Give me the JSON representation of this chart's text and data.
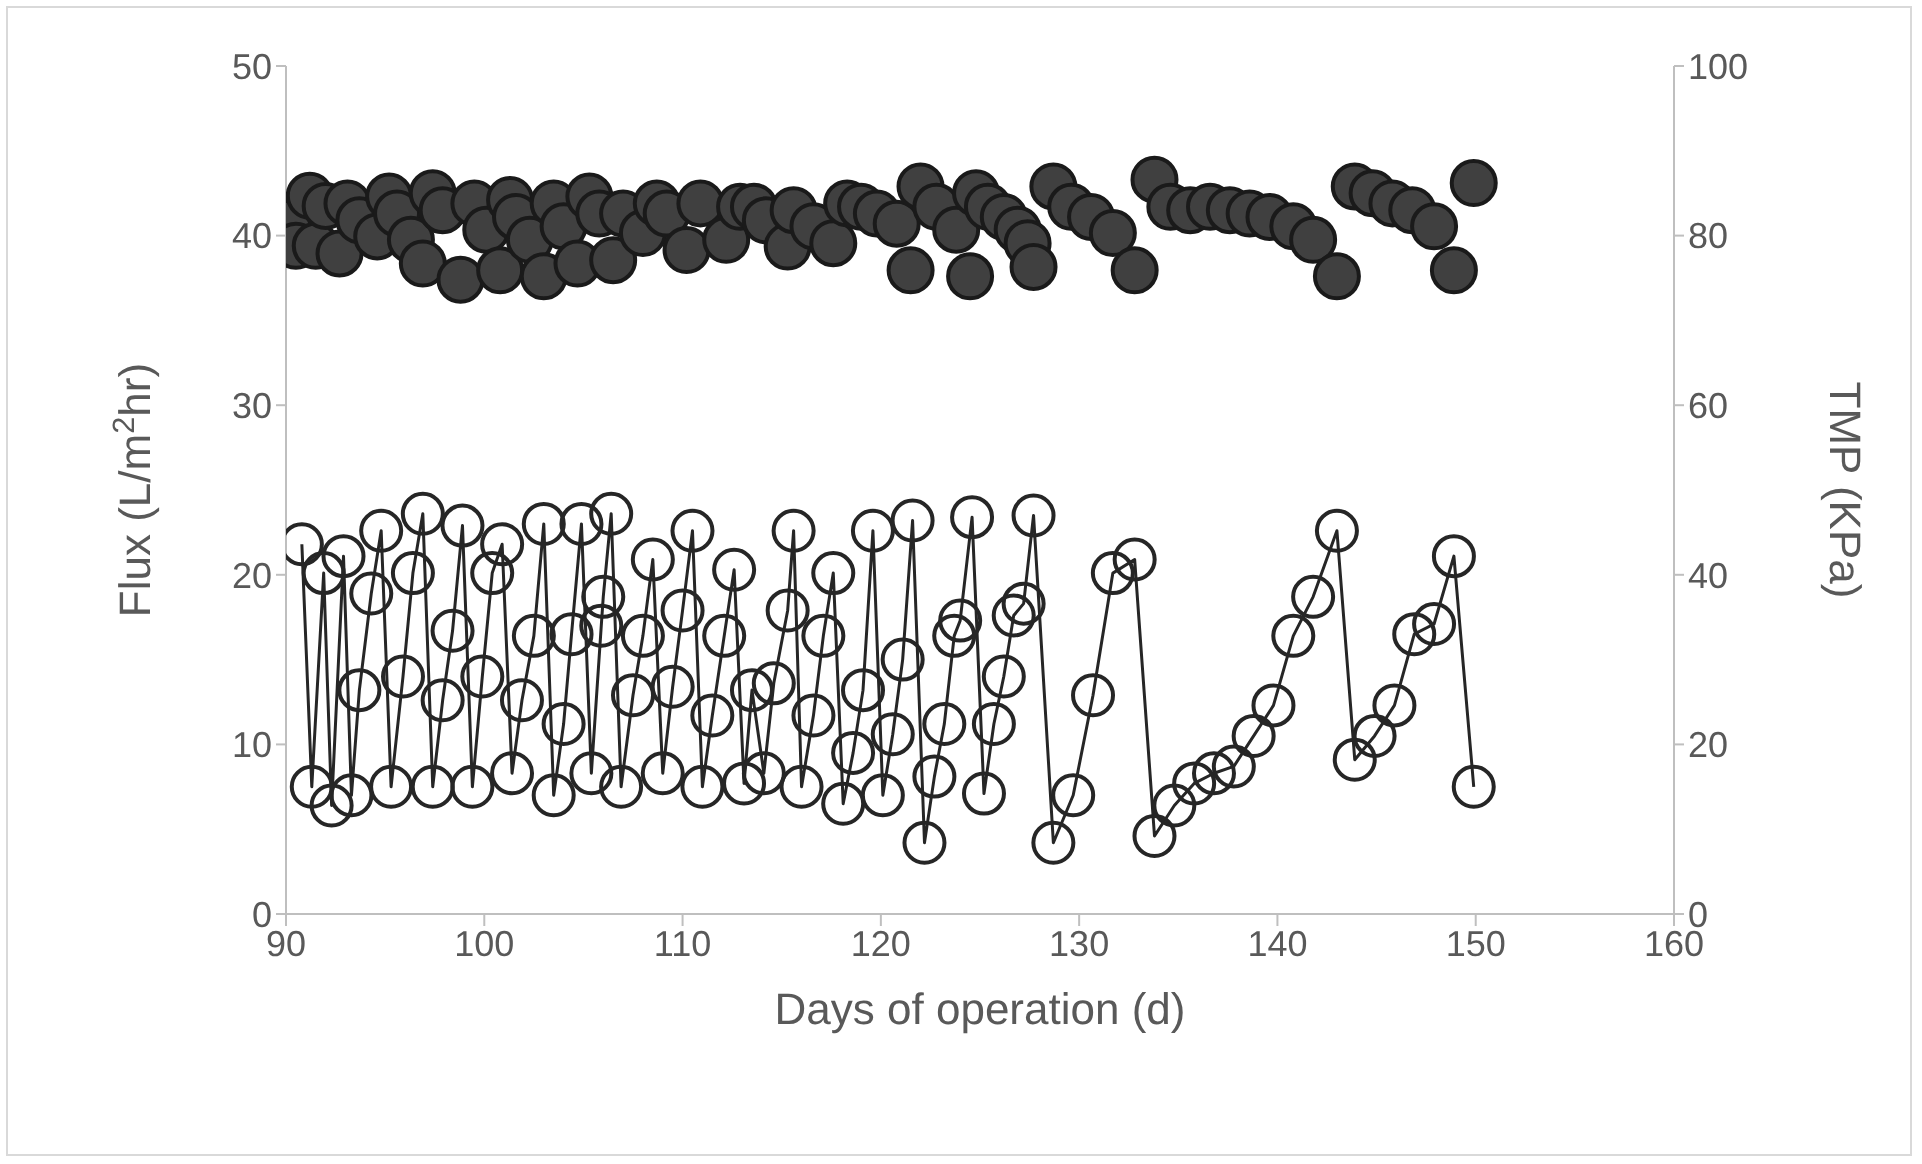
{
  "chart_data": {
    "type": "line",
    "xlabel": "Days of operation (d)",
    "ylabel": "Flux (L/m$^{2}$hr)",
    "y2label": "TMP (KPa)",
    "xlim": [
      90,
      160
    ],
    "xticks": [
      90,
      100,
      110,
      120,
      130,
      140,
      150,
      160
    ],
    "ylim": [
      0,
      50
    ],
    "yticks": [
      0,
      10,
      20,
      30,
      40,
      50
    ],
    "y2lim": [
      0,
      100
    ],
    "y2ticks": [
      0,
      20,
      40,
      60,
      80,
      100
    ],
    "grid": false,
    "marker": "circle",
    "line_style": "solid",
    "series": [
      {
        "color": "#262626",
        "x": [
          90.8,
          91.3,
          91.9,
          92.3,
          92.9,
          93.3,
          93.7,
          94.3,
          94.8,
          95.3,
          95.9,
          96.4,
          96.9,
          97.4,
          97.9,
          98.4,
          98.9,
          99.4,
          99.9,
          100.4,
          100.9,
          101.4,
          101.9,
          102.5,
          103.0,
          103.5,
          104.0,
          104.4,
          104.9,
          105.4,
          105.9,
          106.0,
          106.4,
          106.9,
          107.5,
          108.0,
          108.5,
          109.0,
          109.5,
          110.0,
          110.5,
          111.0,
          111.5,
          112.1,
          112.6,
          113.1,
          113.5,
          114.1,
          114.6,
          115.3,
          115.6,
          116.0,
          116.6,
          117.1,
          117.6,
          118.1,
          118.6,
          119.1,
          119.6,
          120.1,
          120.6,
          121.1,
          121.6,
          122.2,
          122.7,
          123.2,
          123.7,
          124.0,
          124.6,
          125.2,
          125.7,
          126.2,
          126.7,
          127.2,
          127.7,
          128.7,
          129.7,
          130.7,
          131.7,
          132.8,
          133.8,
          134.8,
          135.8,
          136.8,
          137.8,
          138.8,
          139.8,
          140.8,
          141.8,
          143.0,
          143.9,
          144.9,
          145.9,
          146.9,
          147.9,
          148.9,
          149.9
        ],
        "values": [
          21.8,
          7.5,
          20.1,
          6.4,
          21.1,
          7.0,
          13.2,
          18.9,
          22.6,
          7.5,
          14.0,
          20.1,
          23.6,
          7.5,
          12.6,
          16.7,
          22.9,
          7.5,
          14.0,
          20.1,
          21.8,
          8.3,
          12.6,
          16.4,
          23.0,
          7.0,
          11.2,
          16.5,
          23.0,
          8.3,
          17.0,
          18.7,
          23.6,
          7.5,
          12.9,
          16.4,
          20.9,
          8.3,
          13.4,
          17.9,
          22.6,
          7.5,
          11.7,
          16.4,
          20.3,
          7.7,
          13.2,
          8.3,
          13.6,
          17.9,
          22.6,
          7.5,
          11.7,
          16.4,
          20.1,
          6.5,
          9.5,
          13.2,
          22.6,
          7.0,
          10.6,
          15.0,
          23.2,
          4.2,
          8.1,
          11.2,
          16.4,
          17.3,
          23.4,
          7.1,
          11.2,
          14.0,
          17.6,
          18.3,
          23.5,
          4.2,
          7.0,
          12.9,
          20.1,
          20.9,
          4.6,
          6.4,
          7.7,
          8.3,
          8.7,
          10.5,
          12.3,
          16.4,
          18.7,
          22.6,
          9.1,
          10.5,
          12.3,
          16.5,
          17.1,
          21.1,
          7.5
        ]
      },
      {
        "type": "scatter",
        "axis": "y2",
        "color": "#404040",
        "x": [
          90.1,
          90.5,
          91.2,
          91.5,
          92.0,
          92.7,
          93.1,
          93.7,
          94.6,
          95.2,
          95.6,
          96.3,
          96.9,
          97.4,
          97.9,
          98.8,
          99.5,
          100.1,
          100.8,
          101.3,
          101.6,
          102.3,
          103.0,
          103.5,
          104.0,
          104.7,
          105.3,
          105.8,
          106.5,
          107.0,
          108.0,
          108.7,
          109.2,
          110.2,
          110.9,
          112.2,
          112.9,
          113.6,
          114.2,
          115.3,
          115.6,
          116.6,
          117.6,
          118.3,
          119.0,
          119.8,
          120.8,
          121.5,
          122.0,
          122.8,
          123.8,
          124.5,
          124.8,
          125.4,
          126.2,
          126.9,
          127.4,
          127.7,
          128.7,
          129.6,
          130.6,
          131.7,
          132.8,
          133.8,
          134.6,
          135.6,
          136.6,
          137.6,
          138.6,
          139.6,
          140.8,
          141.8,
          143.0,
          143.9,
          144.8,
          145.8,
          146.8,
          147.9,
          148.9,
          149.9
        ],
        "values": [
          81.5,
          78.8,
          84.7,
          78.8,
          83.5,
          77.9,
          83.8,
          81.8,
          79.9,
          84.6,
          82.6,
          79.5,
          76.7,
          85.0,
          83.0,
          74.8,
          83.8,
          80.7,
          75.9,
          84.2,
          82.2,
          79.5,
          75.2,
          83.8,
          81.1,
          76.7,
          84.6,
          82.6,
          77.1,
          82.6,
          80.3,
          83.8,
          82.6,
          78.3,
          83.8,
          79.5,
          83.4,
          83.4,
          81.8,
          78.7,
          83.0,
          81.1,
          79.1,
          83.8,
          83.4,
          82.6,
          81.4,
          75.9,
          85.8,
          83.4,
          80.7,
          75.2,
          85.0,
          83.4,
          82.2,
          80.7,
          79.1,
          76.3,
          85.8,
          83.4,
          82.2,
          80.3,
          75.9,
          86.6,
          83.4,
          83.0,
          83.4,
          83.0,
          82.6,
          82.2,
          81.1,
          79.5,
          75.2,
          85.8,
          85.0,
          83.8,
          83.0,
          81.1,
          75.9,
          86.2
        ]
      }
    ]
  }
}
